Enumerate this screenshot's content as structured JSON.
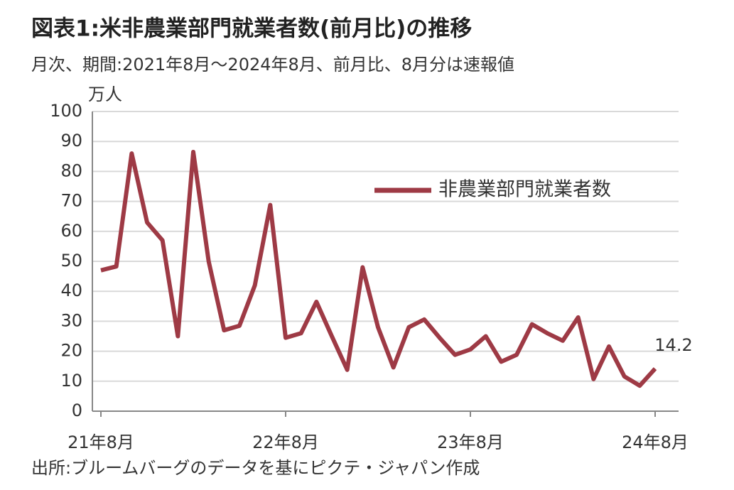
{
  "chart_data": {
    "type": "line",
    "title": "図表1:米非農業部門就業者数(前月比)の推移",
    "subtitle": "月次、期間:2021年8月～2024年8月、前月比、8月分は速報値",
    "ylabel": "万人",
    "note": "出所:ブルームバーグのデータを基にピクテ・ジャパン作成",
    "categories": [
      "21年8月",
      null,
      null,
      null,
      null,
      null,
      null,
      null,
      null,
      null,
      null,
      null,
      "22年8月",
      null,
      null,
      null,
      null,
      null,
      null,
      null,
      null,
      null,
      null,
      null,
      "23年8月",
      null,
      null,
      null,
      null,
      null,
      null,
      null,
      null,
      null,
      null,
      null,
      "24年8月"
    ],
    "series": [
      {
        "name": "非農業部門就業者数",
        "color": "#9e3a45",
        "values": [
          47,
          48.3,
          86,
          63,
          57,
          25,
          86.5,
          50,
          27,
          28.5,
          42,
          68.8,
          24.5,
          26,
          36.5,
          25,
          13.8,
          48,
          28,
          14.6,
          28,
          30.6,
          24.5,
          18.8,
          20.6,
          25,
          16.5,
          18.8,
          29,
          26,
          23.5,
          31.3,
          10.7,
          21.6,
          11.6,
          8.5,
          14.2
        ]
      }
    ],
    "ylim": [
      0,
      100
    ],
    "yticks": [
      0,
      10,
      20,
      30,
      40,
      50,
      60,
      70,
      80,
      90,
      100
    ],
    "grid": true,
    "legend": "upper right"
  }
}
